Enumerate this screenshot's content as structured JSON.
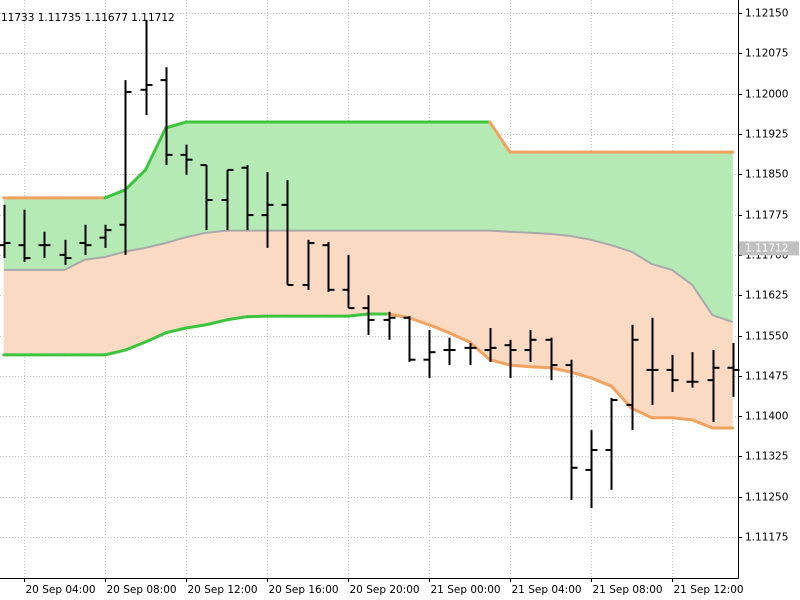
{
  "chart_data": {
    "type": "ohlc",
    "header": "11733 1.11735 1.11677 1.11712",
    "x": [
      "20 Sep 03:00",
      "20 Sep 04:00",
      "20 Sep 05:00",
      "20 Sep 06:00",
      "20 Sep 07:00",
      "20 Sep 08:00",
      "20 Sep 09:00",
      "20 Sep 10:00",
      "20 Sep 11:00",
      "20 Sep 12:00",
      "20 Sep 13:00",
      "20 Sep 14:00",
      "20 Sep 15:00",
      "20 Sep 16:00",
      "20 Sep 17:00",
      "20 Sep 18:00",
      "20 Sep 19:00",
      "20 Sep 20:00",
      "20 Sep 21:00",
      "20 Sep 22:00",
      "20 Sep 23:00",
      "21 Sep 00:00",
      "21 Sep 01:00",
      "21 Sep 02:00",
      "21 Sep 03:00",
      "21 Sep 04:00",
      "21 Sep 05:00",
      "21 Sep 06:00",
      "21 Sep 07:00",
      "21 Sep 08:00",
      "21 Sep 09:00",
      "21 Sep 10:00",
      "21 Sep 11:00",
      "21 Sep 12:00",
      "21 Sep 13:00",
      "21 Sep 14:00",
      "21 Sep 15:00"
    ],
    "open": [
      1.11718,
      1.11718,
      1.11718,
      1.117,
      1.11722,
      1.11732,
      1.11756,
      1.12007,
      1.12025,
      1.11886,
      1.11867,
      1.11802,
      1.11862,
      1.11774,
      1.11793,
      1.11644,
      1.11718,
      1.11635,
      1.11601,
      1.11579,
      1.11583,
      1.11505,
      1.11523,
      1.11527,
      1.11523,
      1.11532,
      1.11523,
      1.11542,
      1.11495,
      1.113,
      1.11337,
      1.11421,
      1.11486,
      1.11486,
      1.11464,
      1.11467,
      1.1149
    ],
    "high": [
      1.11793,
      1.11784,
      1.11743,
      1.11728,
      1.11756,
      1.11756,
      1.12025,
      1.12137,
      1.12049,
      1.11905,
      1.11867,
      1.11858,
      1.11867,
      1.11854,
      1.11839,
      1.11728,
      1.11724,
      1.117,
      1.11625,
      1.11594,
      1.11586,
      1.1156,
      1.11546,
      1.11536,
      1.11564,
      1.11542,
      1.1156,
      1.11546,
      1.11505,
      1.11374,
      1.11434,
      1.1157,
      1.11583,
      1.11514,
      1.11519,
      1.11523,
      1.11536
    ],
    "low": [
      1.11694,
      1.11687,
      1.11694,
      1.11681,
      1.117,
      1.11713,
      1.117,
      1.1196,
      1.11867,
      1.11849,
      1.11746,
      1.11746,
      1.11746,
      1.11713,
      1.11644,
      1.11635,
      1.11631,
      1.11601,
      1.11551,
      1.11542,
      1.11501,
      1.11471,
      1.11495,
      1.11495,
      1.11501,
      1.11471,
      1.11501,
      1.11467,
      1.11244,
      1.11229,
      1.11263,
      1.11374,
      1.11421,
      1.11445,
      1.11453,
      1.11389,
      1.11436
    ],
    "close": [
      1.11722,
      1.11694,
      1.11718,
      1.11694,
      1.11718,
      1.11746,
      1.12003,
      1.12016,
      1.11886,
      1.11877,
      1.11802,
      1.11858,
      1.11774,
      1.11793,
      1.11644,
      1.11722,
      1.11635,
      1.11601,
      1.11579,
      1.11583,
      1.11505,
      1.11519,
      1.11523,
      1.11527,
      1.11527,
      1.11523,
      1.11542,
      1.11495,
      1.11304,
      1.11337,
      1.1143,
      1.11542,
      1.11486,
      1.11467,
      1.11464,
      1.1149,
      1.11486
    ],
    "bar_color": "#000000",
    "upper": {
      "values": [
        1.11806,
        1.11806,
        1.11806,
        1.11806,
        1.11806,
        1.11806,
        1.11821,
        1.11858,
        1.11936,
        1.11947,
        1.11947,
        1.11947,
        1.11947,
        1.11947,
        1.11947,
        1.11947,
        1.11947,
        1.11947,
        1.11947,
        1.11947,
        1.11947,
        1.11947,
        1.11947,
        1.11947,
        1.11947,
        1.11891,
        1.11891,
        1.11891,
        1.11891,
        1.11891,
        1.11891,
        1.11891,
        1.11891,
        1.11891,
        1.11891,
        1.11891,
        1.11891
      ],
      "colors": [
        "#f0a35e",
        "#f0a35e",
        "#f0a35e",
        "#f0a35e",
        "#f0a35e",
        "#3cc43c",
        "#3cc43c",
        "#3cc43c",
        "#3cc43c",
        "#3cc43c",
        "#3cc43c",
        "#3cc43c",
        "#3cc43c",
        "#3cc43c",
        "#3cc43c",
        "#3cc43c",
        "#3cc43c",
        "#3cc43c",
        "#3cc43c",
        "#3cc43c",
        "#3cc43c",
        "#3cc43c",
        "#3cc43c",
        "#3cc43c",
        "#f0a35e",
        "#f0a35e",
        "#f0a35e",
        "#f0a35e",
        "#f0a35e",
        "#f0a35e",
        "#f0a35e",
        "#f0a35e",
        "#f0a35e",
        "#f0a35e",
        "#f0a35e",
        "#f0a35e",
        "#f0a35e"
      ]
    },
    "middle": {
      "values": [
        1.11672,
        1.11672,
        1.11672,
        1.11672,
        1.11691,
        1.11696,
        1.11706,
        1.11713,
        1.11722,
        1.11733,
        1.11741,
        1.11745,
        1.11745,
        1.11745,
        1.11745,
        1.11745,
        1.11745,
        1.11745,
        1.11745,
        1.11745,
        1.11745,
        1.11745,
        1.11745,
        1.11745,
        1.11745,
        1.11743,
        1.11741,
        1.11739,
        1.11735,
        1.11728,
        1.11718,
        1.11706,
        1.11683,
        1.11672,
        1.11644,
        1.11588,
        1.11575
      ],
      "color": "#a9a9a9"
    },
    "lower": {
      "values": [
        1.11514,
        1.11514,
        1.11514,
        1.11514,
        1.11514,
        1.11514,
        1.11523,
        1.11538,
        1.11555,
        1.11564,
        1.1157,
        1.11579,
        1.11585,
        1.11586,
        1.11586,
        1.11586,
        1.11586,
        1.11586,
        1.1159,
        1.1159,
        1.11583,
        1.1157,
        1.11555,
        1.11538,
        1.11505,
        1.11495,
        1.11492,
        1.1149,
        1.11482,
        1.11471,
        1.11456,
        1.11415,
        1.11397,
        1.11397,
        1.11393,
        1.11378,
        1.11378
      ],
      "colors": [
        "#3cc43c",
        "#3cc43c",
        "#3cc43c",
        "#3cc43c",
        "#3cc43c",
        "#3cc43c",
        "#3cc43c",
        "#3cc43c",
        "#3cc43c",
        "#3cc43c",
        "#3cc43c",
        "#3cc43c",
        "#3cc43c",
        "#3cc43c",
        "#3cc43c",
        "#3cc43c",
        "#3cc43c",
        "#3cc43c",
        "#3cc43c",
        "#f0a35e",
        "#f0a35e",
        "#f0a35e",
        "#f0a35e",
        "#f0a35e",
        "#f0a35e",
        "#f0a35e",
        "#f0a35e",
        "#f0a35e",
        "#f0a35e",
        "#f0a35e",
        "#f0a35e",
        "#f0a35e",
        "#f0a35e",
        "#f0a35e",
        "#f0a35e",
        "#f0a35e",
        "#f0a35e"
      ]
    },
    "upper_fill": "#b5eab5",
    "lower_fill": "#fbdac4",
    "current_price": 1.11712,
    "ylim": [
      1.11099,
      1.12174
    ],
    "yticks": [
      {
        "value": 1.1215,
        "label": "1.12150"
      },
      1.12075,
      {
        "value": 1.12,
        "label": "1.12000"
      },
      1.11925,
      {
        "value": 1.1185,
        "label": "1.11850"
      },
      1.11775,
      {
        "value": 1.117,
        "label": "1.11700"
      },
      1.11625,
      {
        "value": 1.1155,
        "label": "1.11550"
      },
      1.11475,
      {
        "value": 1.114,
        "label": "1.11400"
      },
      1.11325,
      {
        "value": 1.1125,
        "label": "1.11250"
      },
      1.11175
    ],
    "xticks": [
      "20 Sep 04:00",
      "20 Sep 08:00",
      "20 Sep 12:00",
      "20 Sep 16:00",
      "20 Sep 20:00",
      "21 Sep 00:00",
      "21 Sep 04:00",
      "21 Sep 08:00",
      "21 Sep 12:00"
    ],
    "grid": true
  }
}
